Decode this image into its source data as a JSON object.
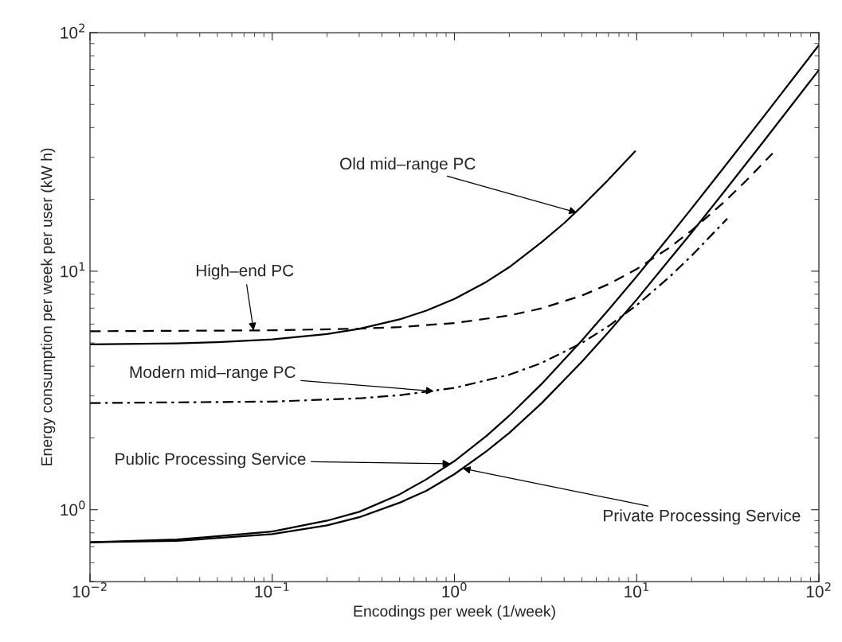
{
  "chart_data": {
    "type": "line",
    "xlabel": "Encodings per week (1/week)",
    "ylabel": "Energy consumption per week per user (kW h)",
    "log": "xy",
    "grid": false,
    "legend": false,
    "xlim": [
      0.01,
      100
    ],
    "ylim": [
      0.5,
      100
    ],
    "xticks": [
      {
        "value": 0.01,
        "label": "10$^{−2}$"
      },
      {
        "value": 0.1,
        "label": "10$^{−1}$"
      },
      {
        "value": 1,
        "label": "10$^{0}$"
      },
      {
        "value": 10,
        "label": "10$^{1}$"
      },
      {
        "value": 100,
        "label": "10$^{2}$"
      }
    ],
    "yticks": [
      {
        "value": 1,
        "label": "10$^{0}$"
      },
      {
        "value": 10,
        "label": "10$^{1}$"
      },
      {
        "value": 100,
        "label": "10$^{2}$"
      }
    ],
    "series": [
      {
        "color": "#000000",
        "line_style": "solid",
        "x": [
          0.01,
          0.03,
          0.05,
          0.1,
          0.2,
          0.3,
          0.5,
          0.7,
          1,
          1.5,
          2,
          3,
          4,
          5,
          7,
          9.8
        ],
        "values": [
          4.93,
          4.98,
          5.04,
          5.18,
          5.45,
          5.73,
          6.28,
          6.83,
          7.65,
          9.03,
          10.4,
          13.2,
          15.9,
          18.7,
          24.2,
          31.8
        ]
      },
      {
        "color": "#000000",
        "line_style": "dashed",
        "x": [
          0.01,
          0.1,
          0.3,
          0.5,
          1,
          2,
          3,
          5,
          7,
          10,
          15,
          20,
          30,
          40,
          55.7
        ],
        "values": [
          5.6,
          5.65,
          5.74,
          5.83,
          6.06,
          6.52,
          6.98,
          7.9,
          8.82,
          10.2,
          12.5,
          14.8,
          19.4,
          24,
          31.2
        ]
      },
      {
        "color": "#000000",
        "line_style": "dashdot",
        "x": [
          0.01,
          0.1,
          0.3,
          0.5,
          1,
          2,
          3,
          5,
          7,
          10,
          15,
          20,
          31.4
        ],
        "values": [
          2.8,
          2.84,
          2.93,
          3.02,
          3.24,
          3.68,
          4.12,
          5.0,
          5.88,
          7.2,
          9.4,
          11.6,
          16.6
        ]
      },
      {
        "color": "#000000",
        "line_style": "solid",
        "x": [
          0.01,
          0.03,
          0.1,
          0.2,
          0.3,
          0.5,
          0.7,
          1,
          1.5,
          2,
          3,
          5,
          7,
          10,
          15,
          20,
          30,
          50,
          100
        ],
        "values": [
          0.73,
          0.75,
          0.81,
          0.9,
          0.98,
          1.16,
          1.34,
          1.6,
          2.04,
          2.48,
          3.36,
          5.12,
          6.88,
          9.5,
          13.9,
          18.3,
          27.1,
          44.7,
          88.7
        ]
      },
      {
        "color": "#000000",
        "line_style": "solid",
        "x": [
          0.01,
          0.03,
          0.1,
          0.2,
          0.3,
          0.5,
          0.7,
          1,
          1.5,
          2,
          3,
          5,
          7,
          10,
          15,
          20,
          30,
          50,
          100
        ],
        "values": [
          0.73,
          0.74,
          0.79,
          0.86,
          0.93,
          1.07,
          1.2,
          1.41,
          1.76,
          2.1,
          2.79,
          4.17,
          5.55,
          7.6,
          11.1,
          14.5,
          21.4,
          35.2,
          69.7
        ]
      }
    ],
    "annotations": [
      {
        "text": "Old mid–range PC",
        "x": 4.7,
        "y": 17.6
      },
      {
        "text": "High–end PC",
        "x": 0.079,
        "y": 5.64
      },
      {
        "text": "Modern mid–range PC",
        "x": 0.77,
        "y": 3.14
      },
      {
        "text": "Public Processing Service",
        "x": 0.95,
        "y": 1.56
      },
      {
        "text": "Private Processing Service",
        "x": 1.11,
        "y": 1.49
      }
    ]
  }
}
